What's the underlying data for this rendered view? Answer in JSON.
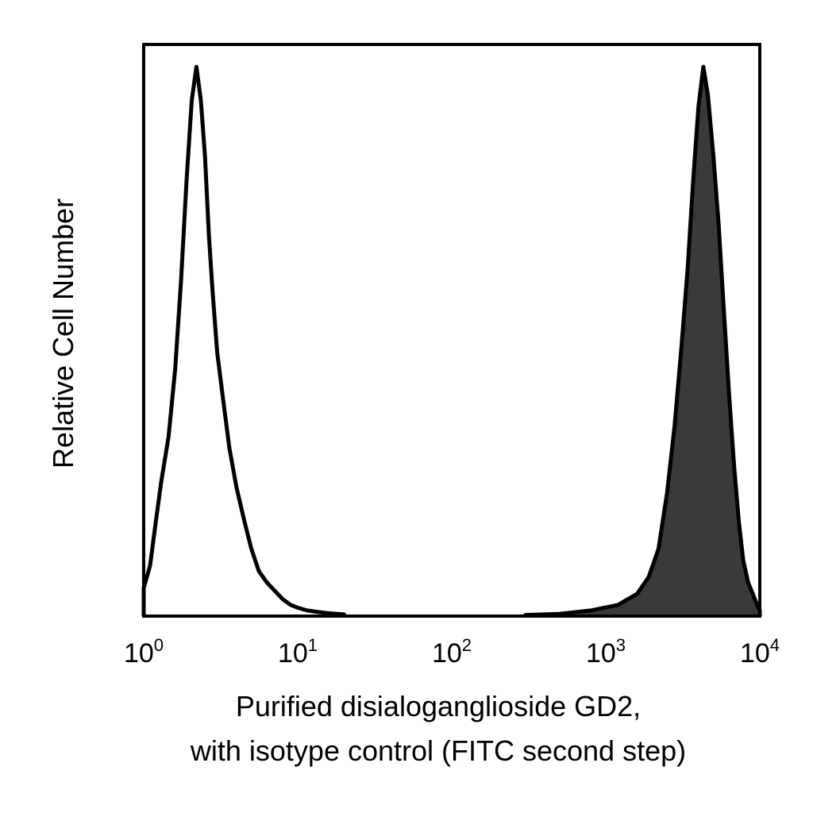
{
  "chart_data": {
    "type": "area",
    "title": "",
    "xlabel_lines": [
      "Purified disialoganglioside GD2,",
      "with isotype control (FITC second step)"
    ],
    "ylabel": "Relative Cell Number",
    "x_scale": "log",
    "xlim": [
      1,
      10000
    ],
    "ylim": [
      0,
      1
    ],
    "grid": false,
    "legend": "none",
    "x_ticks": [
      {
        "base": "10",
        "exp": "0",
        "value": 1
      },
      {
        "base": "10",
        "exp": "1",
        "value": 10
      },
      {
        "base": "10",
        "exp": "2",
        "value": 100
      },
      {
        "base": "10",
        "exp": "3",
        "value": 1000
      },
      {
        "base": "10",
        "exp": "4",
        "value": 10000
      }
    ],
    "series": [
      {
        "style": "outline",
        "color": "#000000",
        "x": [
          1.0,
          1.1,
          1.2,
          1.3,
          1.45,
          1.6,
          1.75,
          1.9,
          2.05,
          2.2,
          2.35,
          2.5,
          2.65,
          2.8,
          3.0,
          3.3,
          3.6,
          4.0,
          4.5,
          5.0,
          5.6,
          6.3,
          7.1,
          8.0,
          9.0,
          10.0,
          11.5,
          13.0,
          16.0,
          20.0
        ],
        "y": [
          0.05,
          0.09,
          0.17,
          0.24,
          0.32,
          0.44,
          0.6,
          0.78,
          0.92,
          0.98,
          0.92,
          0.82,
          0.68,
          0.58,
          0.47,
          0.38,
          0.3,
          0.23,
          0.17,
          0.12,
          0.08,
          0.06,
          0.045,
          0.03,
          0.02,
          0.015,
          0.01,
          0.008,
          0.005,
          0.003
        ]
      },
      {
        "style": "filled",
        "color": "#000000",
        "fill": "#3a3a3a",
        "x": [
          300,
          500,
          800,
          1200,
          1600,
          1900,
          2200,
          2500,
          2800,
          3100,
          3400,
          3700,
          4000,
          4300,
          4600,
          5000,
          5400,
          5800,
          6300,
          6800,
          7300,
          7800,
          8400,
          9000,
          9600,
          10000
        ],
        "y": [
          0.002,
          0.004,
          0.01,
          0.02,
          0.04,
          0.07,
          0.12,
          0.22,
          0.34,
          0.48,
          0.62,
          0.78,
          0.91,
          0.98,
          0.93,
          0.82,
          0.7,
          0.56,
          0.4,
          0.27,
          0.17,
          0.1,
          0.06,
          0.04,
          0.02,
          0.01
        ]
      }
    ]
  }
}
